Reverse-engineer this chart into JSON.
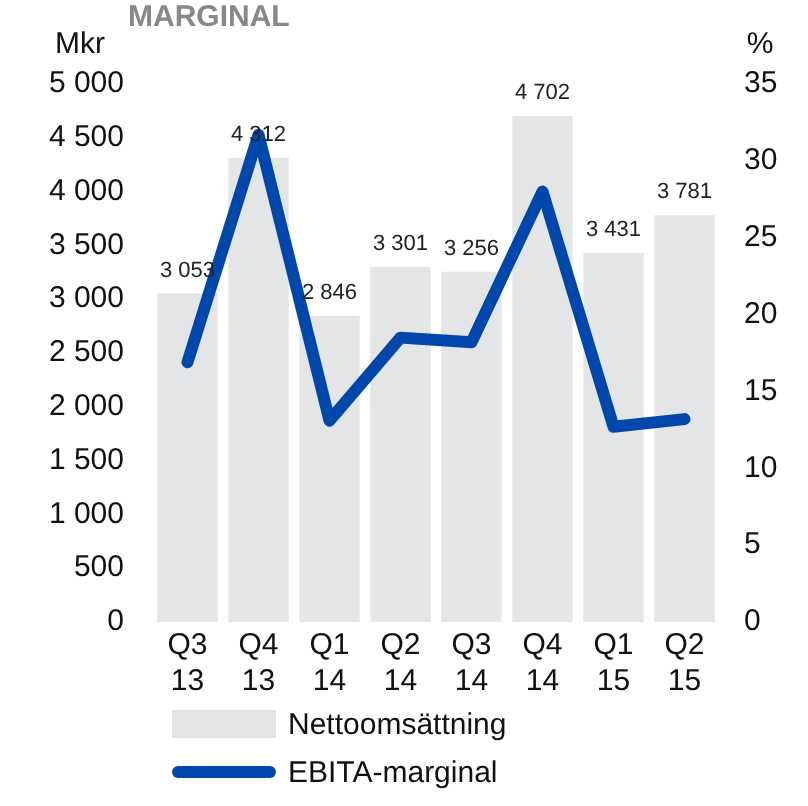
{
  "chart_data": {
    "type": "bar",
    "title": "MARGINAL",
    "ylabel": "Mkr",
    "y2label": "%",
    "categories": [
      "Q3 13",
      "Q4 13",
      "Q1 14",
      "Q2 14",
      "Q3 14",
      "Q4 14",
      "Q1 15",
      "Q2 15"
    ],
    "series": [
      {
        "name": "Nettoomsättning",
        "type": "bar",
        "color": "#e4e5e7",
        "values": [
          3053,
          4312,
          2846,
          3301,
          3256,
          4702,
          3431,
          3781
        ],
        "value_labels": [
          "3 053",
          "4 312",
          "2 846",
          "3 301",
          "3 256",
          "4 702",
          "3 431",
          "3 781"
        ]
      },
      {
        "name": "EBITA-marginal",
        "type": "line",
        "axis": "y2",
        "color": "#0047ab",
        "values": [
          16.9,
          31.7,
          13.1,
          18.5,
          18.2,
          28.0,
          12.7,
          13.2
        ]
      }
    ],
    "ylim": [
      0,
      5000
    ],
    "yticks": [
      0,
      500,
      {
        "value": 1000,
        "label": "1 000"
      },
      {
        "value": 1500,
        "label": "1 500"
      },
      {
        "value": 2000,
        "label": "2 000"
      },
      {
        "value": 2500,
        "label": "2 500"
      },
      {
        "value": 3000,
        "label": "3 000"
      },
      {
        "value": 3500,
        "label": "3 500"
      },
      {
        "value": 4000,
        "label": "4 000"
      },
      {
        "value": 4500,
        "label": "4 500"
      },
      {
        "value": 5000,
        "label": "5 000"
      }
    ],
    "y2lim": [
      0,
      35
    ],
    "y2ticks": [
      0,
      5,
      10,
      15,
      20,
      25,
      30,
      35
    ],
    "legend": "bottom",
    "grid": false,
    "marker": "none"
  }
}
